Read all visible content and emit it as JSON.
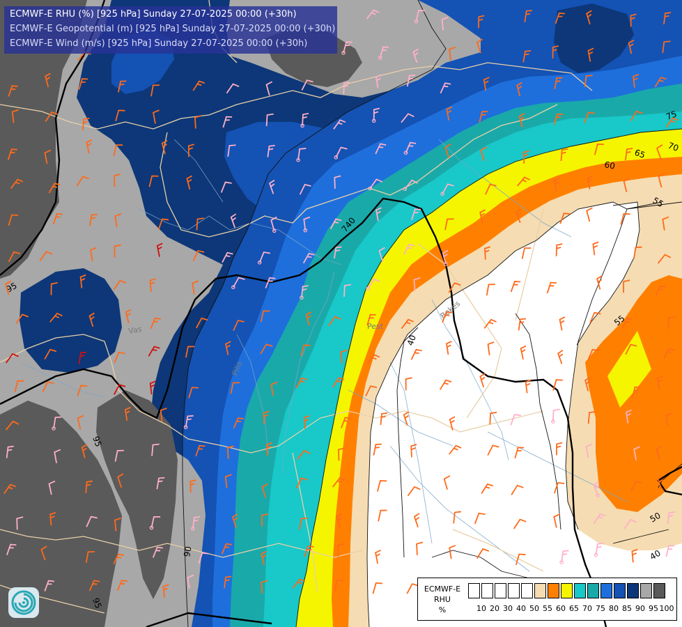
{
  "header": {
    "line1": "ECMWF-E RHU (%) [925 hPa] Sunday 27-07-2025 00:00 (+30h)",
    "line2": "ECMWF-E Geopotential (m) [925 hPa] Sunday 27-07-2025 00:00 (+30h)",
    "line3": "ECMWF-E Wind (m/s) [925 hPa] Sunday 27-07-2025 00:00 (+30h)"
  },
  "legend": {
    "title_line1": "ECMWF-E",
    "title_line2": "RHU",
    "title_line3": "%",
    "ticks": [
      "10",
      "20",
      "30",
      "40",
      "50",
      "55",
      "60",
      "65",
      "70",
      "75",
      "80",
      "85",
      "90",
      "95",
      "100"
    ],
    "colors": [
      "#ffffff",
      "#ffffff",
      "#ffffff",
      "#ffffff",
      "#ffffff",
      "#f5dcb2",
      "#ff8000",
      "#f5f500",
      "#19c8c8",
      "#1aa9a9",
      "#1e6fdc",
      "#1452b4",
      "#0d3778",
      "#a8a8a8",
      "#5a5a5a"
    ]
  },
  "contour_labels": {
    "geopotential": [
      "740"
    ],
    "rhu": [
      "95",
      "95",
      "95",
      "90",
      "75",
      "70",
      "65",
      "60",
      "55",
      "55",
      "50",
      "40",
      "40"
    ]
  },
  "places": [
    "Vas",
    "Bekes",
    "Pest",
    "Pilis"
  ],
  "colors": {
    "rhu_100": "#5a5a5a",
    "rhu_95": "#a8a8a8",
    "rhu_90": "#0d3778",
    "rhu_85": "#1452b4",
    "rhu_80": "#1e6fdc",
    "rhu_75": "#1aa9a9",
    "rhu_70": "#19c8c8",
    "rhu_65": "#f5f500",
    "rhu_60": "#ff8000",
    "rhu_55": "#f5dcb2",
    "wind_barb_warm": "#ff6a1a",
    "wind_barb_strong": "#d01010",
    "wind_barb_light": "#ffb0c8",
    "boundary": "#e9d0a8"
  }
}
